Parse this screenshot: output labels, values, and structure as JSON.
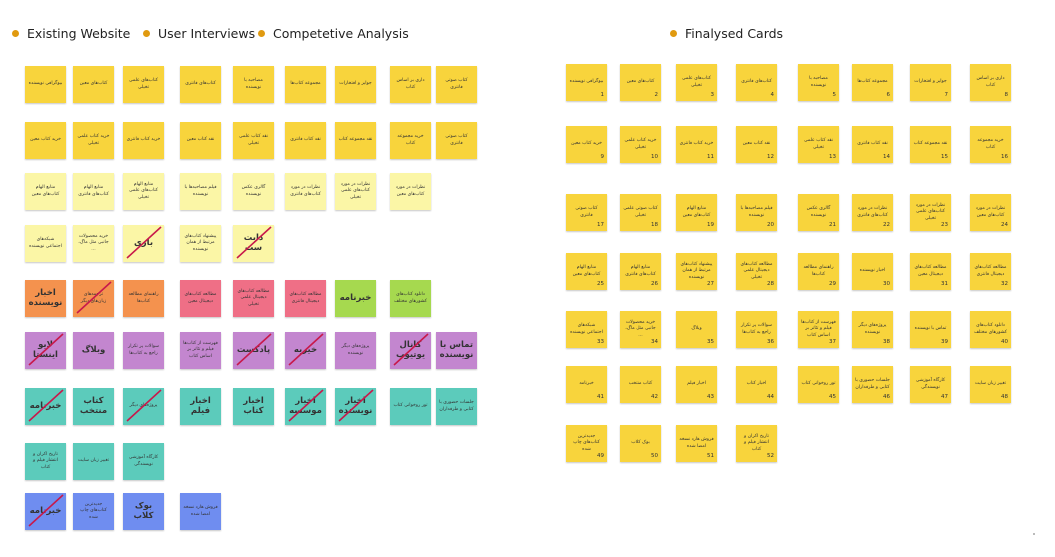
{
  "legend": {
    "existing": "Existing Website",
    "interviews": "User Interviews",
    "competitive": "Competetive Analysis",
    "finalised": "Finalysed Cards"
  },
  "colors": {
    "yellow": "#f8d43c",
    "lemon": "#fbf6a6",
    "orange": "#f4924e",
    "pink": "#ef6f86",
    "green": "#a6d94f",
    "purple": "#c386cf",
    "teal": "#5ccbbb",
    "blue": "#6f8df0",
    "legend_dot": "#e09a10",
    "strike": "#c8194b"
  },
  "left_rows": [
    [
      {
        "text": "بیوگرافی نویسنده",
        "color": "yellow"
      },
      {
        "text": "کتاب‌های معین",
        "color": "yellow"
      },
      {
        "text": "کتاب‌های علمی تخیلی",
        "color": "yellow"
      },
      {
        "text": "کتاب‌های فانتزی",
        "color": "yellow"
      },
      {
        "text": "مصاحبه با نویسنده",
        "color": "yellow"
      },
      {
        "text": "مجموعه کتاب‌ها",
        "color": "yellow"
      },
      {
        "text": "جوایز و افتخارات",
        "color": "yellow"
      },
      {
        "text": "داری بر اساس کتاب",
        "color": "yellow"
      },
      {
        "text": "کتاب صوتی فانتزی",
        "color": "yellow"
      }
    ],
    [
      {
        "text": "خرید کتاب معین",
        "color": "yellow"
      },
      {
        "text": "خرید کتاب علمی تخیلی",
        "color": "yellow"
      },
      {
        "text": "خرید کتاب فانتزی",
        "color": "yellow"
      },
      {
        "text": "نقد کتاب معین",
        "color": "yellow"
      },
      {
        "text": "نقد کتاب علمی تخیلی",
        "color": "yellow"
      },
      {
        "text": "نقد کتاب فانتزی",
        "color": "yellow"
      },
      {
        "text": "نقد مجموعه کتاب",
        "color": "yellow"
      },
      {
        "text": "خرید مجموعه کتاب",
        "color": "yellow"
      },
      {
        "text": "کتاب صوتی فانتزی",
        "color": "yellow"
      }
    ],
    [
      {
        "text": "منابع الهام کتاب‌های معین",
        "color": "lemon"
      },
      {
        "text": "منابع الهام کتاب‌های فانتزی",
        "color": "lemon"
      },
      {
        "text": "منابع الهام کتاب‌های علمی تخیلی",
        "color": "lemon"
      },
      {
        "text": "فیلم مصاحبه‌ها با نویسنده",
        "color": "lemon"
      },
      {
        "text": "گالری عکس نویسنده",
        "color": "lemon"
      },
      {
        "text": "نظرات در مورد کتاب‌های فانتزی",
        "color": "lemon"
      },
      {
        "text": "نظرات در مورد کتاب‌های علمی تخیلی",
        "color": "lemon"
      },
      {
        "text": "نظرات در مورد کتاب‌های معین",
        "color": "lemon"
      }
    ],
    [
      {
        "text": "شبکه‌های اجتماعی نویسنده",
        "color": "lemon"
      },
      {
        "text": "خرید محصولات جانبی مثل ماگ، ...",
        "color": "lemon"
      },
      {
        "text": "بازی",
        "color": "lemon",
        "big": true,
        "struck": true
      },
      {
        "text": "پیشنهاد کتاب‌های مرتبط از همان نویسنده",
        "color": "lemon"
      },
      {
        "text": "دابت ست",
        "color": "lemon",
        "big": true,
        "struck": true
      }
    ],
    [
      {
        "text": "اخبار نویسنده",
        "color": "orange",
        "big": true
      },
      {
        "text": "ترجمه‌های زبان‌های دیگر",
        "color": "orange",
        "struck": true
      },
      {
        "text": "راهنمای مطالعه کتاب‌ها",
        "color": "orange"
      },
      {
        "text": "مطالعه کتاب‌های دیجیتال معین",
        "color": "pink"
      },
      {
        "text": "مطالعه کتاب‌های دیجیتال علمی تخیلی",
        "color": "pink"
      },
      {
        "text": "مطالعه کتاب‌های دیجیتال فانتزی",
        "color": "pink"
      },
      {
        "text": "خبرنامه",
        "color": "green",
        "big": true
      },
      {
        "text": "دانلود کتاب‌های کشورهای مختلف",
        "color": "green"
      }
    ],
    [
      {
        "text": "لایو اینستا",
        "color": "purple",
        "big": true,
        "struck": true
      },
      {
        "text": "وبلاگ",
        "color": "purple",
        "big": true
      },
      {
        "text": "سوالات پر تکرار راجع به کتاب‌ها",
        "color": "purple"
      },
      {
        "text": "فهرست از کتاب‌ها فیلم و تئاتر بر اساس کتاب",
        "color": "purple"
      },
      {
        "text": "پادکست",
        "color": "purple",
        "big": true,
        "struck": true
      },
      {
        "text": "خیریه",
        "color": "purple",
        "big": true,
        "struck": true
      },
      {
        "text": "پروژه‌های دیگر نویسنده",
        "color": "purple"
      },
      {
        "text": "کانال یوتیوب",
        "color": "purple",
        "big": true,
        "struck": true
      },
      {
        "text": "تماس با نویسنده",
        "color": "purple",
        "big": true
      }
    ],
    [
      {
        "text": "خبرنامه",
        "color": "teal",
        "big": true,
        "struck": true
      },
      {
        "text": "کتاب منتخب",
        "color": "teal",
        "big": true
      },
      {
        "text": "پروژه‌های دیگر",
        "color": "teal",
        "struck": true
      },
      {
        "text": "اخبار فیلم",
        "color": "teal",
        "big": true
      },
      {
        "text": "اخبار کتاب",
        "color": "teal",
        "big": true
      },
      {
        "text": "اخبار موسسه",
        "color": "teal",
        "big": true,
        "struck": true
      },
      {
        "text": "اخبار نویسنده",
        "color": "teal",
        "big": true,
        "struck": true
      },
      {
        "text": "تور روخوانی کتاب",
        "color": "teal"
      },
      {
        "text": "جلسات حضوری با کتابی و طرفداران",
        "color": "teal"
      }
    ],
    [
      {
        "text": "تاریخ اکران و انتشار فیلم و کتاب",
        "color": "teal"
      },
      {
        "text": "تغییر زبان سایت",
        "color": "teal"
      },
      {
        "text": "کارگاه آموزشی نویسندگی",
        "color": "teal"
      }
    ],
    [
      {
        "text": "خبرنامه",
        "color": "blue",
        "big": true,
        "struck": true
      },
      {
        "text": "جدیدترین کتاب‌های چاپ شده",
        "color": "blue"
      },
      {
        "text": "بوک کلاب",
        "color": "blue",
        "big": true
      },
      {
        "text": "فروش هارد نسخه امضا شده",
        "color": "blue"
      }
    ]
  ],
  "final_cards": [
    {
      "n": "1",
      "text": "بیوگرافی نویسنده"
    },
    {
      "n": "2",
      "text": "کتاب‌های معین"
    },
    {
      "n": "3",
      "text": "کتاب‌های علمی تخیلی"
    },
    {
      "n": "4",
      "text": "کتاب‌های فانتزی"
    },
    {
      "n": "5",
      "text": "مصاحبه با نویسنده"
    },
    {
      "n": "6",
      "text": "مجموعه کتاب‌ها"
    },
    {
      "n": "7",
      "text": "جوایز و افتخارات"
    },
    {
      "n": "8",
      "text": "داری بر اساس کتاب"
    },
    {
      "n": "9",
      "text": "خرید کتاب معین"
    },
    {
      "n": "10",
      "text": "خرید کتاب علمی تخیلی"
    },
    {
      "n": "11",
      "text": "خرید کتاب فانتزی"
    },
    {
      "n": "12",
      "text": "نقد کتاب معین"
    },
    {
      "n": "13",
      "text": "نقد کتاب علمی تخیلی"
    },
    {
      "n": "14",
      "text": "نقد کتاب فانتزی"
    },
    {
      "n": "15",
      "text": "نقد مجموعه کتاب"
    },
    {
      "n": "16",
      "text": "خرید مجموعه کتاب"
    },
    {
      "n": "17",
      "text": "کتاب صوتی فانتزی"
    },
    {
      "n": "18",
      "text": "کتاب صوتی علمی تخیلی"
    },
    {
      "n": "19",
      "text": "منابع الهام کتاب‌های معین"
    },
    {
      "n": "20",
      "text": "فیلم مصاحبه‌ها با نویسنده"
    },
    {
      "n": "21",
      "text": "گالری عکس نویسنده"
    },
    {
      "n": "22",
      "text": "نظرات در مورد کتاب‌های فانتزی"
    },
    {
      "n": "23",
      "text": "نظرات در مورد کتاب‌های علمی تخیلی"
    },
    {
      "n": "24",
      "text": "نظرات در مورد کتاب‌های معین"
    },
    {
      "n": "25",
      "text": "منابع الهام کتاب‌های معین"
    },
    {
      "n": "26",
      "text": "منابع الهام کتاب‌های فانتزی"
    },
    {
      "n": "27",
      "text": "پیشنهاد کتاب‌های مرتبط از همان نویسنده"
    },
    {
      "n": "28",
      "text": "مطالعه کتاب‌های دیجیتال علمی تخیلی"
    },
    {
      "n": "29",
      "text": "راهنمای مطالعه کتاب‌ها"
    },
    {
      "n": "30",
      "text": "اخبار نویسنده"
    },
    {
      "n": "31",
      "text": "مطالعه کتاب‌های دیجیتال معین"
    },
    {
      "n": "32",
      "text": "مطالعه کتاب‌های دیجیتال فانتزی"
    },
    {
      "n": "33",
      "text": "شبکه‌های اجتماعی نویسنده"
    },
    {
      "n": "34",
      "text": "خرید محصولات جانبی مثل ماگ، ..."
    },
    {
      "n": "35",
      "text": "وبلاگ"
    },
    {
      "n": "36",
      "text": "سوالات پر تکرار راجع به کتاب‌ها"
    },
    {
      "n": "37",
      "text": "فهرست از کتاب‌ها فیلم و تئاتر بر اساس کتاب"
    },
    {
      "n": "38",
      "text": "پروژه‌های دیگر نویسنده"
    },
    {
      "n": "39",
      "text": "تماس با نویسنده"
    },
    {
      "n": "40",
      "text": "دانلود کتاب‌های کشورهای مختلف"
    },
    {
      "n": "41",
      "text": "خبرنامه"
    },
    {
      "n": "42",
      "text": "کتاب منتخب"
    },
    {
      "n": "43",
      "text": "اخبار فیلم"
    },
    {
      "n": "44",
      "text": "اخبار کتاب"
    },
    {
      "n": "45",
      "text": "تور روخوانی کتاب"
    },
    {
      "n": "46",
      "text": "جلسات حضوری با کتابی و طرفداران"
    },
    {
      "n": "47",
      "text": "کارگاه آموزشی نویسندگی"
    },
    {
      "n": "48",
      "text": "تغییر زبان سایت"
    },
    {
      "n": "49",
      "text": "جدیدترین کتاب‌های چاپ شده"
    },
    {
      "n": "50",
      "text": "بوک کلاب"
    },
    {
      "n": "51",
      "text": "فروش هارد نسخه امضا شده"
    },
    {
      "n": "52",
      "text": "تاریخ اکران و انتشار فیلم و کتاب"
    }
  ]
}
